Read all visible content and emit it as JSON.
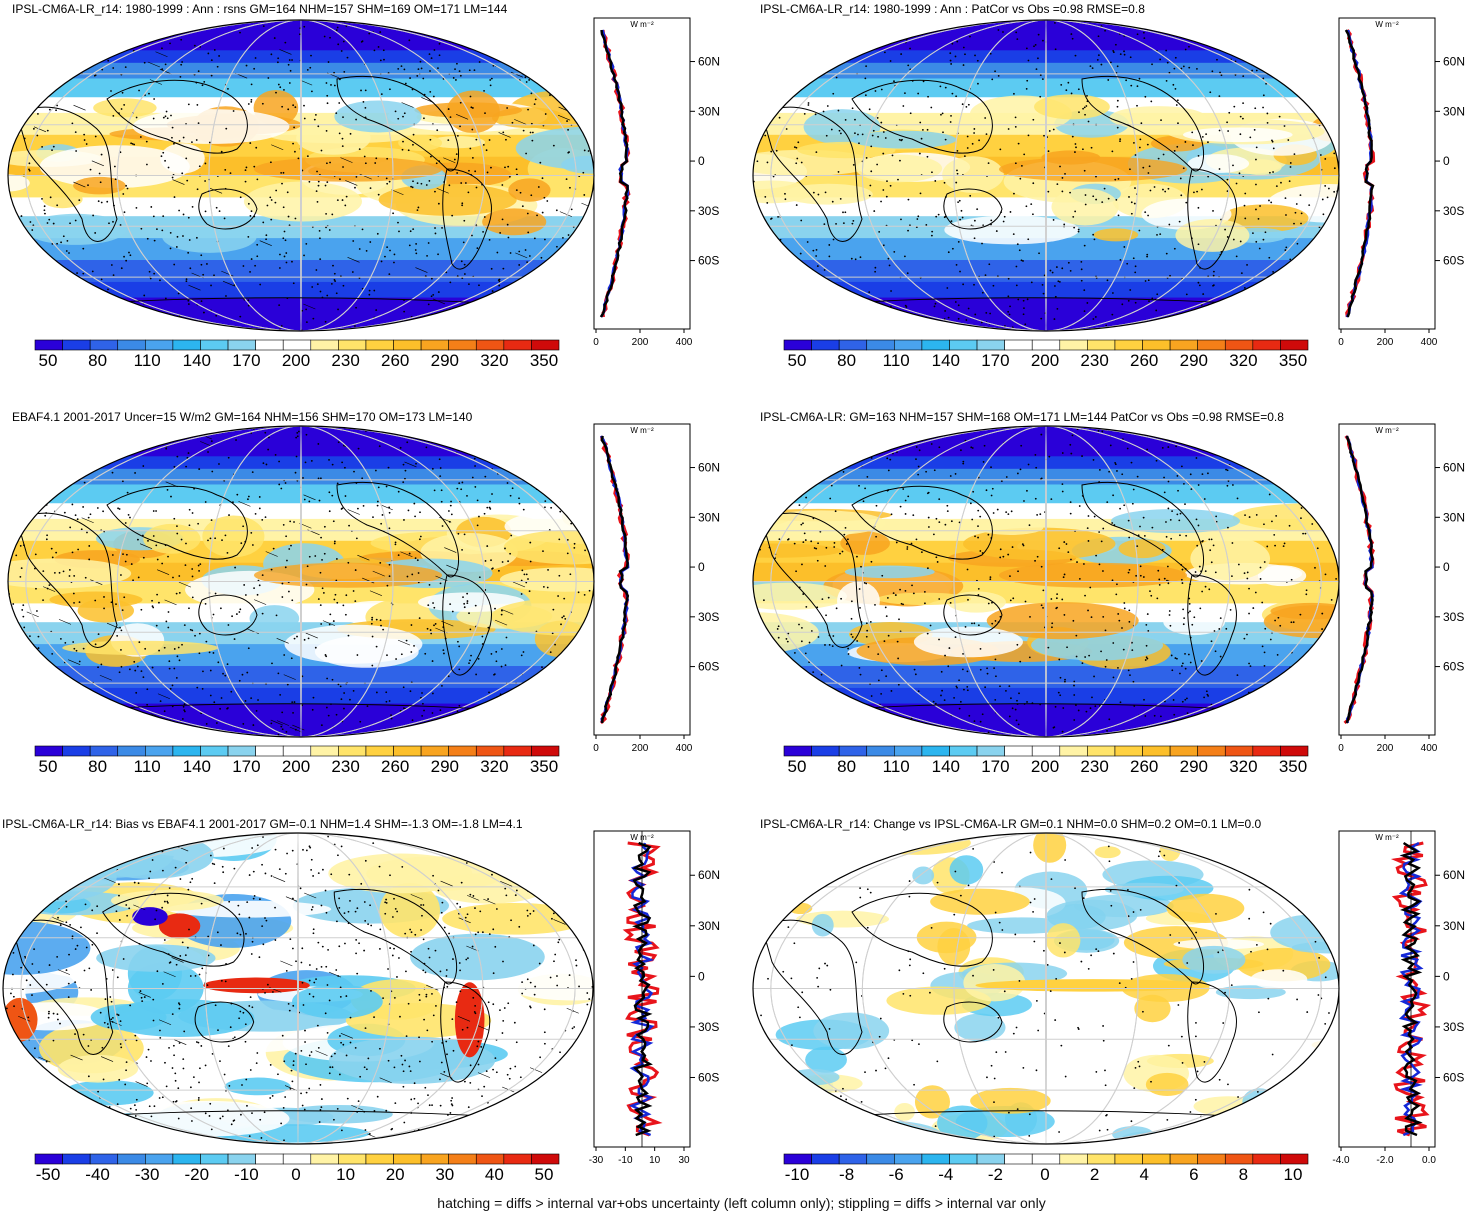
{
  "colors": {
    "abs_scale": [
      "#2a00d8",
      "#1a3ee6",
      "#2f63e8",
      "#3b8ae6",
      "#4aa3ee",
      "#2cb5ef",
      "#5ccbf2",
      "#8ad3ee",
      "#ffffff",
      "#ffffff",
      "#fff3a6",
      "#ffe46a",
      "#ffd140",
      "#fcbf2a",
      "#f8a420",
      "#f47f18",
      "#ef5514",
      "#e82a12",
      "#cf0a0a"
    ],
    "diff_scale": [
      "#2a00d8",
      "#1a3ee6",
      "#2f63e8",
      "#3b8ae6",
      "#4aa3ee",
      "#2cb5ef",
      "#5ccbf2",
      "#8ad3ee",
      "#ffffff",
      "#ffffff",
      "#fff3a6",
      "#ffe46a",
      "#ffd140",
      "#fcbf2a",
      "#f8a420",
      "#f47f18",
      "#ef5514",
      "#e82a12",
      "#cf0a0a"
    ],
    "line_red": "#e8141b",
    "line_blue": "#1428d8",
    "line_black": "#000000"
  },
  "panels": [
    {
      "id": "p1",
      "title": "IPSL-CM6A-LR_r14: 1980-1999 : Ann : rsns GM=164 NHM=157 SHM=169 OM=171 LM=144",
      "colorbar_labels": [
        "50",
        "80",
        "110",
        "140",
        "170",
        "200",
        "230",
        "260",
        "290",
        "320",
        "350"
      ],
      "profile_unit": "W m⁻²",
      "profile_x_ticks": [
        "0",
        "200",
        "400"
      ],
      "profile_lat_ticks": [
        "60N",
        "30N",
        "0",
        "30S",
        "60S"
      ],
      "kind": "abs"
    },
    {
      "id": "p2",
      "title": "IPSL-CM6A-LR_r14: 1980-1999 : Ann : PatCor vs Obs =0.98 RMSE=0.8",
      "colorbar_labels": [
        "50",
        "80",
        "110",
        "140",
        "170",
        "200",
        "230",
        "260",
        "290",
        "320",
        "350"
      ],
      "profile_unit": "W m⁻²",
      "profile_x_ticks": [
        "0",
        "200",
        "400"
      ],
      "profile_lat_ticks": [
        "60N",
        "30N",
        "0",
        "30S",
        "60S"
      ],
      "kind": "abs"
    },
    {
      "id": "p3",
      "title": "EBAF4.1 2001-2017 Uncer=15 W/m2 GM=164 NHM=156 SHM=170 OM=173 LM=140",
      "colorbar_labels": [
        "50",
        "80",
        "110",
        "140",
        "170",
        "200",
        "230",
        "260",
        "290",
        "320",
        "350"
      ],
      "profile_unit": "W m⁻²",
      "profile_x_ticks": [
        "0",
        "200",
        "400"
      ],
      "profile_lat_ticks": [
        "60N",
        "30N",
        "0",
        "30S",
        "60S"
      ],
      "kind": "abs"
    },
    {
      "id": "p4",
      "title": "IPSL-CM6A-LR: GM=163 NHM=157 SHM=168 OM=171 LM=144 PatCor vs Obs =0.98 RMSE=0.8",
      "colorbar_labels": [
        "50",
        "80",
        "110",
        "140",
        "170",
        "200",
        "230",
        "260",
        "290",
        "320",
        "350"
      ],
      "profile_unit": "W m⁻²",
      "profile_x_ticks": [
        "0",
        "200",
        "400"
      ],
      "profile_lat_ticks": [
        "60N",
        "30N",
        "0",
        "30S",
        "60S"
      ],
      "kind": "abs"
    },
    {
      "id": "p5",
      "title": "IPSL-CM6A-LR_r14: Bias vs EBAF4.1 2001-2017 GM=-0.1 NHM=1.4 SHM=-1.3 OM=-1.8 LM=4.1",
      "colorbar_labels": [
        "-50",
        "-40",
        "-30",
        "-20",
        "-10",
        "0",
        "10",
        "20",
        "30",
        "40",
        "50"
      ],
      "profile_unit": "W m⁻²",
      "profile_x_ticks": [
        "-30",
        "-10",
        "10",
        "30"
      ],
      "profile_lat_ticks": [
        "60N",
        "30N",
        "0",
        "30S",
        "60S"
      ],
      "kind": "bias"
    },
    {
      "id": "p6",
      "title": "IPSL-CM6A-LR_r14: Change vs IPSL-CM6A-LR GM=0.1 NHM=0.0 SHM=0.2 OM=0.1 LM=0.0",
      "colorbar_labels": [
        "-10",
        "-8",
        "-6",
        "-4",
        "-2",
        "0",
        "2",
        "4",
        "6",
        "8",
        "10"
      ],
      "profile_unit": "W m⁻²",
      "profile_x_ticks": [
        "-4.0",
        "-2.0",
        "0.0"
      ],
      "profile_lat_ticks": [
        "60N",
        "30N",
        "0",
        "30S",
        "60S"
      ],
      "kind": "change"
    }
  ],
  "footer": "hatching = diffs > internal var+obs uncertainty (left column only); stippling = diffs > internal var only"
}
